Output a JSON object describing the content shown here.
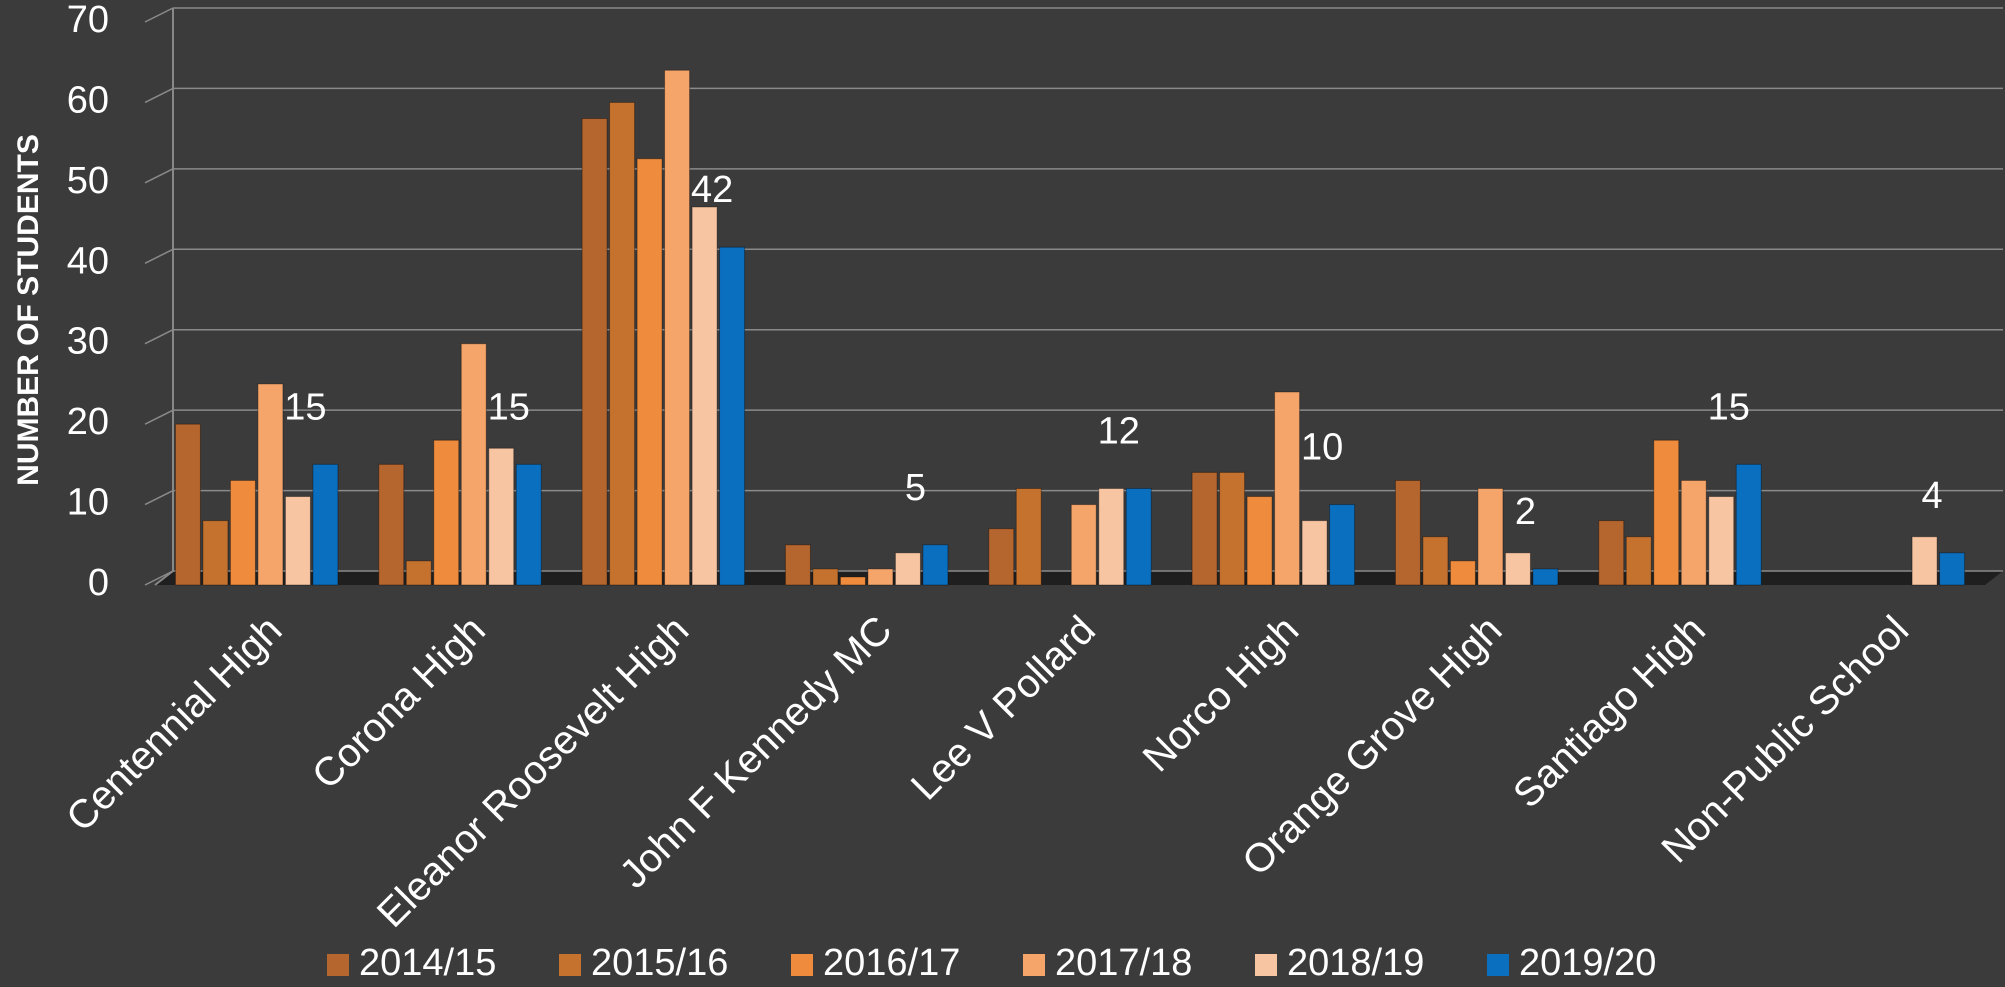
{
  "chart_data": {
    "type": "bar",
    "y_axis_label": "NUMBER OF STUDENTS",
    "categories": [
      "Centennial High",
      "Corona High",
      "Eleanor Roosevelt High",
      "John F Kennedy MC",
      "Lee V Pollard",
      "Norco High",
      "Orange Grove High",
      "Santiago High",
      "Non-Public School"
    ],
    "series": [
      {
        "name": "2014/15",
        "color": "#b5652e",
        "values": [
          20,
          15,
          58,
          5,
          7,
          14,
          13,
          8,
          null
        ]
      },
      {
        "name": "2015/16",
        "color": "#c5722f",
        "values": [
          8,
          3,
          60,
          2,
          12,
          14,
          6,
          6,
          null
        ]
      },
      {
        "name": "2016/17",
        "color": "#ee8b3d",
        "values": [
          13,
          18,
          53,
          1,
          0,
          11,
          3,
          18,
          null
        ]
      },
      {
        "name": "2017/18",
        "color": "#f5a46a",
        "values": [
          25,
          30,
          64,
          2,
          10,
          24,
          12,
          13,
          null
        ]
      },
      {
        "name": "2018/19",
        "color": "#f8c5a2",
        "values": [
          11,
          17,
          47,
          4,
          12,
          8,
          4,
          11,
          6
        ]
      },
      {
        "name": "2019/20",
        "color": "#0b6fc0",
        "values": [
          15,
          15,
          42,
          5,
          12,
          10,
          2,
          15,
          4
        ],
        "data_labels": true
      }
    ],
    "ylim": [
      0,
      70
    ],
    "yticks": [
      0,
      10,
      20,
      30,
      40,
      50,
      60,
      70
    ],
    "grid": true,
    "legend": "bottom"
  }
}
